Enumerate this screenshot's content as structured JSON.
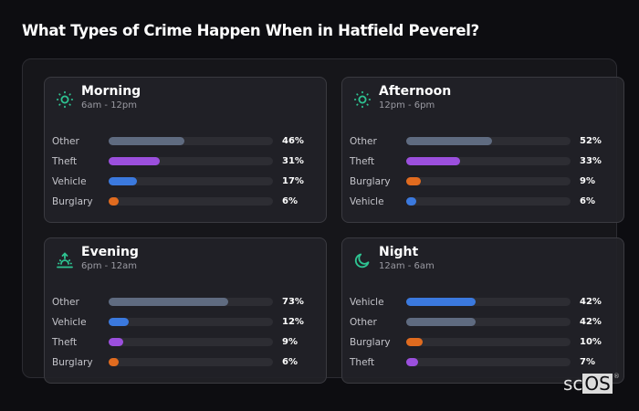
{
  "title": "What Types of Crime Happen When in Hatfield Peverel?",
  "colors": {
    "background": "#0d0d11",
    "accent_icon": "#2ec492",
    "Other": "#5f6b80",
    "Theft": "#9b4fdd",
    "Vehicle": "#3b79de",
    "Burglary": "#e06b1f",
    "track": "#2d2d33"
  },
  "cards": [
    {
      "name": "Morning",
      "range": "6am - 12pm",
      "icon": "sun-icon",
      "rows": [
        {
          "label": "Other",
          "value": 46,
          "pct": "46%"
        },
        {
          "label": "Theft",
          "value": 31,
          "pct": "31%"
        },
        {
          "label": "Vehicle",
          "value": 17,
          "pct": "17%"
        },
        {
          "label": "Burglary",
          "value": 6,
          "pct": "6%"
        }
      ]
    },
    {
      "name": "Afternoon",
      "range": "12pm - 6pm",
      "icon": "sun-icon",
      "rows": [
        {
          "label": "Other",
          "value": 52,
          "pct": "52%"
        },
        {
          "label": "Theft",
          "value": 33,
          "pct": "33%"
        },
        {
          "label": "Burglary",
          "value": 9,
          "pct": "9%"
        },
        {
          "label": "Vehicle",
          "value": 6,
          "pct": "6%"
        }
      ]
    },
    {
      "name": "Evening",
      "range": "6pm - 12am",
      "icon": "sunset-icon",
      "rows": [
        {
          "label": "Other",
          "value": 73,
          "pct": "73%"
        },
        {
          "label": "Vehicle",
          "value": 12,
          "pct": "12%"
        },
        {
          "label": "Theft",
          "value": 9,
          "pct": "9%"
        },
        {
          "label": "Burglary",
          "value": 6,
          "pct": "6%"
        }
      ]
    },
    {
      "name": "Night",
      "range": "12am - 6am",
      "icon": "moon-icon",
      "rows": [
        {
          "label": "Vehicle",
          "value": 42,
          "pct": "42%"
        },
        {
          "label": "Other",
          "value": 42,
          "pct": "42%"
        },
        {
          "label": "Burglary",
          "value": 10,
          "pct": "10%"
        },
        {
          "label": "Theft",
          "value": 7,
          "pct": "7%"
        }
      ]
    }
  ],
  "logo": {
    "sc": "sc",
    "os": "OS",
    "reg": "®"
  },
  "chart_data": [
    {
      "type": "bar",
      "orientation": "horizontal",
      "title": "Morning",
      "subtitle": "6am - 12pm",
      "categories": [
        "Other",
        "Theft",
        "Vehicle",
        "Burglary"
      ],
      "values": [
        46,
        31,
        17,
        6
      ],
      "unit": "%",
      "xlim": [
        0,
        100
      ]
    },
    {
      "type": "bar",
      "orientation": "horizontal",
      "title": "Afternoon",
      "subtitle": "12pm - 6pm",
      "categories": [
        "Other",
        "Theft",
        "Burglary",
        "Vehicle"
      ],
      "values": [
        52,
        33,
        9,
        6
      ],
      "unit": "%",
      "xlim": [
        0,
        100
      ]
    },
    {
      "type": "bar",
      "orientation": "horizontal",
      "title": "Evening",
      "subtitle": "6pm - 12am",
      "categories": [
        "Other",
        "Vehicle",
        "Theft",
        "Burglary"
      ],
      "values": [
        73,
        12,
        9,
        6
      ],
      "unit": "%",
      "xlim": [
        0,
        100
      ]
    },
    {
      "type": "bar",
      "orientation": "horizontal",
      "title": "Night",
      "subtitle": "12am - 6am",
      "categories": [
        "Vehicle",
        "Other",
        "Burglary",
        "Theft"
      ],
      "values": [
        42,
        42,
        10,
        7
      ],
      "unit": "%",
      "xlim": [
        0,
        100
      ]
    }
  ]
}
